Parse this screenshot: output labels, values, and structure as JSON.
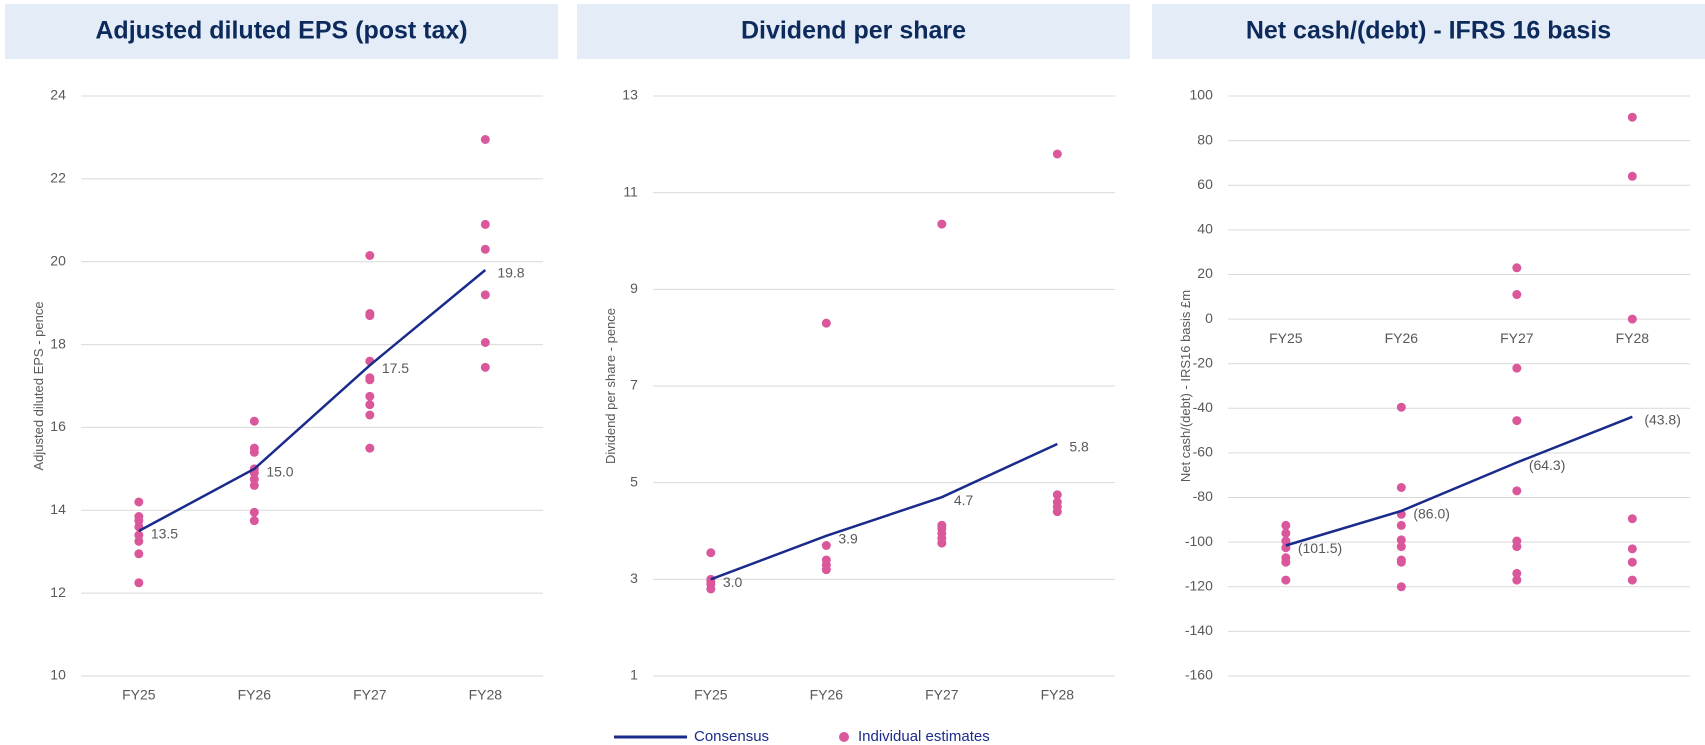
{
  "chart_data": [
    {
      "type": "line",
      "title": "Adjusted diluted EPS (post tax)",
      "y_label": "Adjusted diluted EPS - pence",
      "categories": [
        "FY25",
        "FY26",
        "FY27",
        "FY28"
      ],
      "ylim": [
        10,
        24
      ],
      "yticks": [
        10,
        12,
        14,
        16,
        18,
        20,
        22,
        24
      ],
      "grid": true,
      "series": [
        {
          "name": "Consensus",
          "type": "line",
          "color": "#1a2b8c",
          "values": [
            13.5,
            15.0,
            17.5,
            19.8
          ],
          "value_labels": [
            "13.5",
            "15.0",
            "17.5",
            "19.8"
          ]
        },
        {
          "name": "Individual estimates",
          "type": "scatter",
          "color": "#d9579a",
          "x": [
            "FY25",
            "FY25",
            "FY25",
            "FY25",
            "FY25",
            "FY25",
            "FY25",
            "FY25",
            "FY26",
            "FY26",
            "FY26",
            "FY26",
            "FY26",
            "FY26",
            "FY26",
            "FY26",
            "FY26",
            "FY27",
            "FY27",
            "FY27",
            "FY27",
            "FY27",
            "FY27",
            "FY27",
            "FY27",
            "FY27",
            "FY27",
            "FY28",
            "FY28",
            "FY28",
            "FY28",
            "FY28",
            "FY28"
          ],
          "values": [
            14.2,
            13.85,
            13.75,
            13.6,
            13.4,
            13.25,
            12.95,
            12.25,
            16.15,
            15.5,
            15.4,
            15.0,
            14.9,
            14.75,
            14.6,
            13.95,
            13.75,
            20.15,
            18.75,
            18.7,
            17.6,
            17.2,
            17.15,
            16.75,
            16.55,
            16.3,
            15.5,
            22.95,
            20.9,
            20.3,
            19.2,
            18.05,
            17.45
          ]
        }
      ]
    },
    {
      "type": "line",
      "title": "Dividend per share",
      "y_label": "Dividend per share - pence",
      "categories": [
        "FY25",
        "FY26",
        "FY27",
        "FY28"
      ],
      "ylim": [
        1,
        13
      ],
      "yticks": [
        1,
        3,
        5,
        7,
        9,
        11,
        13
      ],
      "grid": true,
      "series": [
        {
          "name": "Consensus",
          "type": "line",
          "color": "#1a2b8c",
          "values": [
            3.0,
            3.9,
            4.7,
            5.8
          ],
          "value_labels": [
            "3.0",
            "3.9",
            "4.7",
            "5.8"
          ]
        },
        {
          "name": "Individual estimates",
          "type": "scatter",
          "color": "#d9579a",
          "x": [
            "FY25",
            "FY25",
            "FY25",
            "FY25",
            "FY25",
            "FY26",
            "FY26",
            "FY26",
            "FY26",
            "FY26",
            "FY27",
            "FY27",
            "FY27",
            "FY27",
            "FY27",
            "FY27",
            "FY28",
            "FY28",
            "FY28",
            "FY28",
            "FY28"
          ],
          "values": [
            3.55,
            3.0,
            2.95,
            2.9,
            2.8,
            8.3,
            3.7,
            3.4,
            3.3,
            3.2,
            10.35,
            4.12,
            4.05,
            3.95,
            3.85,
            3.75,
            11.8,
            4.75,
            4.6,
            4.5,
            4.4
          ]
        }
      ]
    },
    {
      "type": "line",
      "title": "Net cash/(debt) - IFRS 16 basis",
      "y_label": "Net cash/(debt) - IRS16 basis £m",
      "categories": [
        "FY25",
        "FY26",
        "FY27",
        "FY28"
      ],
      "ylim": [
        -160,
        100
      ],
      "yticks": [
        -160,
        -140,
        -120,
        -100,
        -80,
        -60,
        -40,
        -20,
        0,
        20,
        40,
        60,
        80,
        100
      ],
      "grid": true,
      "series": [
        {
          "name": "Consensus",
          "type": "line",
          "color": "#1a2b8c",
          "values": [
            -101.5,
            -86.0,
            -64.3,
            -43.8
          ],
          "value_labels": [
            "(101.5)",
            "(86.0)",
            "(64.3)",
            "(43.8)"
          ]
        },
        {
          "name": "Individual estimates",
          "type": "scatter",
          "color": "#d9579a",
          "x": [
            "FY25",
            "FY25",
            "FY25",
            "FY25",
            "FY25",
            "FY25",
            "FY25",
            "FY26",
            "FY26",
            "FY26",
            "FY26",
            "FY26",
            "FY26",
            "FY26",
            "FY26",
            "FY26",
            "FY27",
            "FY27",
            "FY27",
            "FY27",
            "FY27",
            "FY27",
            "FY27",
            "FY27",
            "FY27",
            "FY28",
            "FY28",
            "FY28",
            "FY28",
            "FY28",
            "FY28",
            "FY28"
          ],
          "values": [
            -92.5,
            -96,
            -99.5,
            -102.5,
            -107,
            -109,
            -117,
            -39.5,
            -75.5,
            -87.5,
            -92.5,
            -99,
            -102,
            -108,
            -109,
            -120,
            23,
            11,
            -22,
            -45.5,
            -77,
            -99.5,
            -102,
            -114,
            -117,
            90.5,
            64,
            0,
            -89.5,
            -103,
            -109,
            -117
          ]
        }
      ]
    }
  ]
}
